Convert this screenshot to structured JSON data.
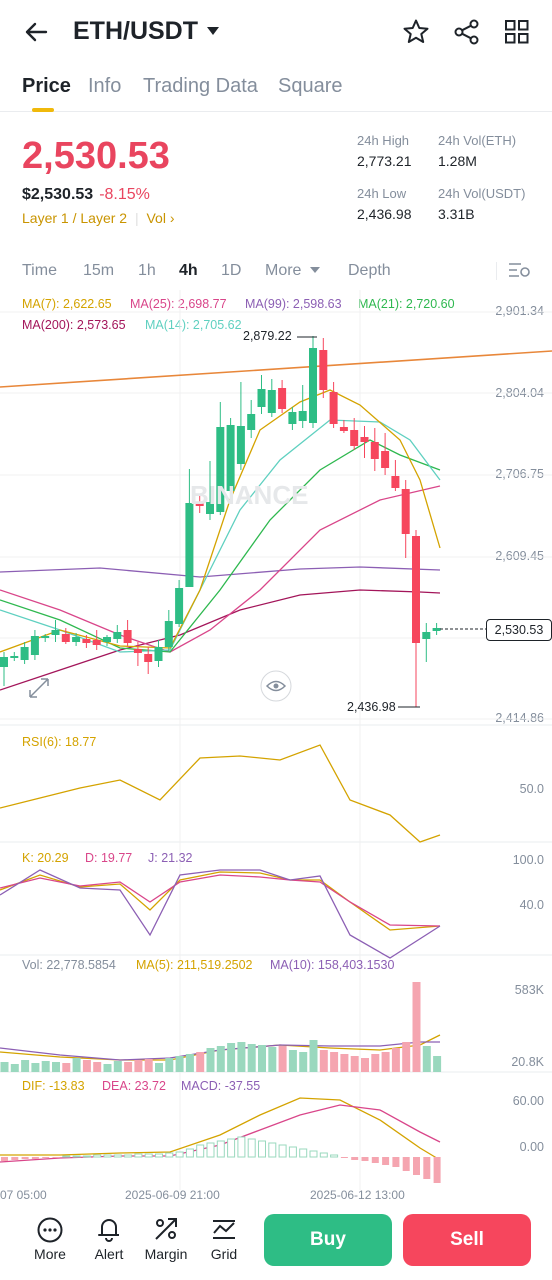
{
  "header": {
    "title": "ETH/USDT"
  },
  "tabs": [
    "Price",
    "Info",
    "Trading Data",
    "Square"
  ],
  "price": {
    "last": "2,530.53",
    "usd": "$2,530.53",
    "change": "-8.15%",
    "tags": "Layer 1 / Layer 2",
    "vol_link": "Vol"
  },
  "stats": {
    "high_label": "24h High",
    "high": "2,773.21",
    "vol_eth_label": "24h Vol(ETH)",
    "vol_eth": "1.28M",
    "low_label": "24h Low",
    "low": "2,436.98",
    "vol_usdt_label": "24h Vol(USDT)",
    "vol_usdt": "3.31B"
  },
  "timeframes": [
    "Time",
    "15m",
    "1h",
    "4h",
    "1D",
    "More",
    "Depth"
  ],
  "ma": {
    "ma7": "MA(7): 2,622.65",
    "ma25": "MA(25): 2,698.77",
    "ma99": "MA(99): 2,598.63",
    "ma21": "MA(21): 2,720.60",
    "ma200": "MA(200): 2,573.65",
    "ma14": "MA(14): 2,705.62"
  },
  "axis": [
    "2,901.34",
    "2,804.04",
    "2,706.75",
    "2,609.45",
    "2,414.86"
  ],
  "current_price_tag": "2,530.53",
  "high_marker": "2,879.22",
  "low_marker": "2,436.98",
  "watermark": "BINANCE",
  "rsi": {
    "label": "RSI(6): 18.77",
    "axis": "50.0"
  },
  "kdj": {
    "k": "K: 20.29",
    "d": "D: 19.77",
    "j": "J: 21.32",
    "axis_top": "100.0",
    "axis_mid": "40.0"
  },
  "vol": {
    "label": "Vol: 22,778.5854",
    "ma5": "MA(5): 211,519.2502",
    "ma10": "MA(10): 158,403.1530",
    "axis_top": "583K",
    "axis_bot": "20.8K"
  },
  "macd": {
    "dif": "DIF: -13.83",
    "dea": "DEA: 23.72",
    "macd": "MACD: -37.55",
    "axis_top": "60.00",
    "axis_mid": "0.00"
  },
  "dates": [
    "07 05:00",
    "2025-06-09 21:00",
    "2025-06-12 13:00"
  ],
  "bottom": {
    "more": "More",
    "alert": "Alert",
    "margin": "Margin",
    "grid": "Grid",
    "buy": "Buy",
    "sell": "Sell"
  },
  "colors": {
    "up": "#2ebd85",
    "down": "#f6465d",
    "accent": "#f0b90b"
  }
}
